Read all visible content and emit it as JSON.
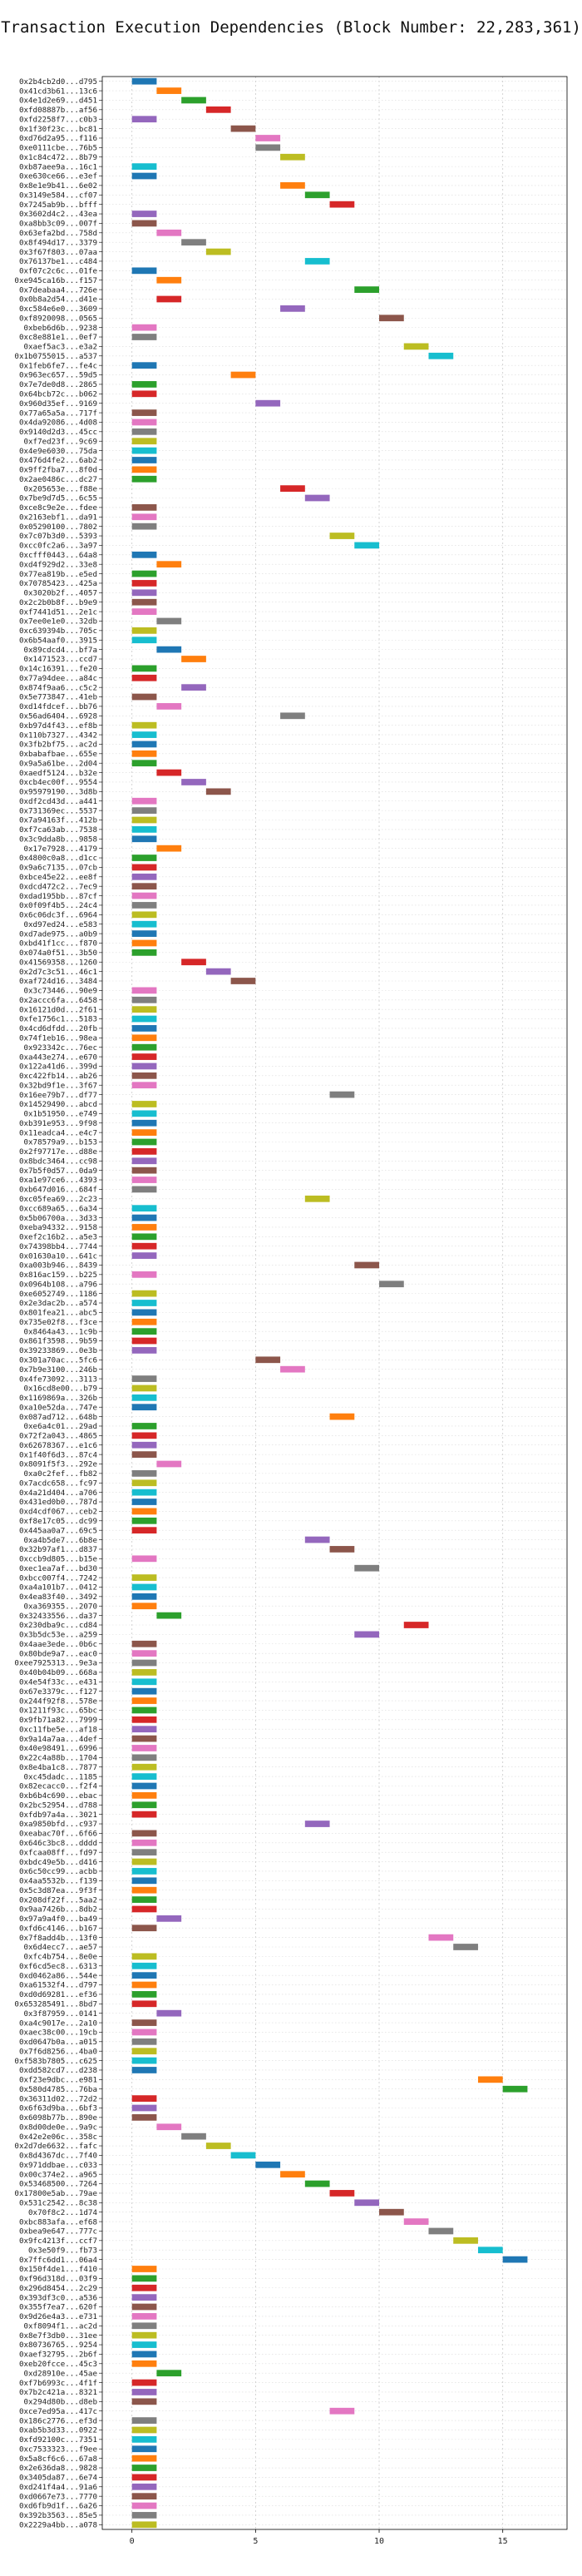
{
  "chart_data": {
    "type": "bar",
    "title": "Transaction Execution Dependencies (Block Number: 22,283,361)",
    "xlabel": "",
    "ylabel": "",
    "xlim": [
      -1.2,
      17.6
    ],
    "xticks": [
      0,
      5,
      10,
      15
    ],
    "grid": true,
    "legend": "none",
    "palette": [
      "#1f77b4",
      "#ff7f0e",
      "#2ca02c",
      "#d62728",
      "#9467bd",
      "#8c564b",
      "#e377c2",
      "#7f7f7f",
      "#bcbd22",
      "#17becf"
    ],
    "categories": [
      "0x2b4cb2d0...d795",
      "0x41cd3b61...13c6",
      "0x4e1d2e69...d451",
      "0xfd08887b...af56",
      "0xfd2258f7...c0b3",
      "0x1f30f23c...bc81",
      "0xd76d2a95...f116",
      "0xe0111cbe...76b5",
      "0x1c84c472...8b79",
      "0xb87aee9a...16c1",
      "0xe630ce66...e3ef",
      "0x8e1e9b41...6e02",
      "0x3149e584...cf07",
      "0x7245ab9b...bfff",
      "0x3602d4c2...43ea",
      "0xa8bb3c09...007f",
      "0x63efa2bd...758d",
      "0x8f494d17...3379",
      "0x3f67f803...07aa",
      "0x76137be1...c484",
      "0xf07c2c6c...01fe",
      "0xe945ca16b...f157",
      "0x7deabaa4...726e",
      "0x0b8a2d54...d41e",
      "0xc584e6e0...3609",
      "0xf8920098...0565",
      "0xbeb6d6b...9238",
      "0xc8e881e1...0ef7",
      "0xaef5ac3...e3a2",
      "0x1b0755015...a537",
      "0x1feb6fe7...fe4c",
      "0x963ec657...59d5",
      "0x7e7de0d8...2865",
      "0x64bcb72c...b062",
      "0x960d35ef...9169",
      "0x77a65a5a...717f",
      "0x4da92086...4d08",
      "0x9140d2d3...45cc",
      "0xf7ed23f...9c69",
      "0x4e9e6030...75da",
      "0x476d4fe2...6ab2",
      "0x9ff2fba7...8f0d",
      "0x2ae0486c...dc27",
      "0x205653e...f88e",
      "0x7be9d7d5...6c55",
      "0xce8c9e2e...fdee",
      "0x2163ebf1...da91",
      "0x05290100...7802",
      "0x7c07b3d0...5393",
      "0xcc0fc2a6...3a97",
      "0xcfff0443...64a8",
      "0xd4f929d2...33e8",
      "0x77ea819b...e5ed",
      "0x70785423...425a",
      "0x3020b2f...4057",
      "0x2c2b0b8f...b9e9",
      "0xf7441d51...2e1c",
      "0x7ee0e1e0...32db",
      "0xc639394b...705c",
      "0x6b54aaf0...3915",
      "0x89cdcd4...bf7a",
      "0x1471523...ccd7",
      "0x14c16391...fe20",
      "0x77a94dee...a84c",
      "0x874f9aa6...c5c2",
      "0x5e773847...41eb",
      "0xd14fdcef...bb76",
      "0x56ad6404...6928",
      "0xb97d4f43...ef8b",
      "0x110b7327...4342",
      "0x3fb2bf75...ac2d",
      "0xbabafbae...655e",
      "0x9a5a61be...2d04",
      "0xaedf5124...b32e",
      "0xcb4ec00f...9554",
      "0x95979190...3d8b",
      "0xdf2cd43d...a441",
      "0x731369ec...5537",
      "0x7a94163f...412b",
      "0xf7ca63ab...7538",
      "0x3c9dda8b...9858",
      "0x17e7928...4179",
      "0x4800c0a8...d1cc",
      "0x9a6c7135...07cb",
      "0xbce45e22...ee8f",
      "0xdcd472c2...7ec9",
      "0xdad195bb...87cf",
      "0x0f09f4b5...24c4",
      "0x6c06dc3f...6964",
      "0xd97ed24...e583",
      "0xd7ade975...a0b9",
      "0xbd41f1cc...f870",
      "0x074a0f51...3b50",
      "0x41569358...1260",
      "0x2d7c3c51...46c1",
      "0xaf724d16...3484",
      "0x3c73446...90e9",
      "0x2accc6fa...6458",
      "0x16121d0d...2f61",
      "0xfe1756c1...5183",
      "0x4cd6dfdd...20fb",
      "0x74f1eb16...98ea",
      "0x923342c...76ec",
      "0xa443e274...e670",
      "0x122a41d6...399d",
      "0xc422fb14...ab26",
      "0x32bd9f1e...3f67",
      "0x16ee79b7...df77",
      "0x14529490...abcd",
      "0x1b51950...e749",
      "0xb391e953...9f98",
      "0x11eadca4...e4c7",
      "0x78579a9...b153",
      "0x2f97717e...d88e",
      "0x8bdc3464...cc98",
      "0x7b5f0d57...0da9",
      "0xa1e97ce6...4393",
      "0xb647d016...684f",
      "0xc05fea69...2c23",
      "0xcc689a65...6a34",
      "0x5b06700a...3d33",
      "0xeba94332...9158",
      "0xef2c16b2...a5e3",
      "0x74398bb4...7744",
      "0x01630a10...641c",
      "0xa003b946...8439",
      "0x816ac159...b225",
      "0x0964b108...a796",
      "0xe6052749...1186",
      "0x2e3dac2b...a574",
      "0x801fea21...abc5",
      "0x735e02f8...f3ce",
      "0x8464a43...1c9b",
      "0x861f3598...9b59",
      "0x39233869...0e3b",
      "0x301a70ac...5fc6",
      "0x7b9e3100...246b",
      "0x4fe73092...3113",
      "0x16cd8e00...b79",
      "0x1169869a...326b",
      "0xa10e52da...747e",
      "0x087ad712...648b",
      "0xe6a4c01...29ad",
      "0x72f2a043...4865",
      "0x62678367...e1c6",
      "0x1f40f6d3...87c4",
      "0x8091f5f3...292e",
      "0xa0c2fef...fb82",
      "0x7acdc658...fc97",
      "0x4a21d404...a706",
      "0x431ed0b0...787d",
      "0xd4cdf067...ceb2",
      "0xf8e17c05...dc99",
      "0x445aa0a7...69c5",
      "0xa4b5de7...6b8e",
      "0x32b97af1...d837",
      "0xccb9d805...b15e",
      "0xec1ea7af...bd30",
      "0xbcc007f4...7242",
      "0xa4a101b7...0412",
      "0x4ea83f40...3492",
      "0xa369355...2070",
      "0x32433556...da37",
      "0x230dba9c...cd84",
      "0x3b5dc53e...a259",
      "0x4aae3ede...0b6c",
      "0x80bde9a7...eac0",
      "0xee7925313...9e3a",
      "0x40b04b09...668a",
      "0x4e54f33c...e431",
      "0x67e3379c...f127",
      "0x244f92f8...578e",
      "0x1211f93c...65bc",
      "0x9fb71a82...7999",
      "0xc11fbe5e...af18",
      "0x9a14a7aa...4def",
      "0x40e98491...6996",
      "0x22c4a88b...1704",
      "0x8e4ba1c8...7877",
      "0xc45dadc...1185",
      "0x82ecacc0...f2f4",
      "0xb6b4c690...ebac",
      "0x2bc52954...d788",
      "0xfdb97a4a...3021",
      "0xa9850bfd...c937",
      "0xeabac70f...6f66",
      "0x646c3bc8...dddd",
      "0xfcaa08ff...fd97",
      "0xbdc49e5b...d416",
      "0x6c50cc99...acbb",
      "0x4aa5532b...f139",
      "0x5c3d87ea...9f3f",
      "0x208df22f...5aa2",
      "0x9aa7426b...8db2",
      "0x97a9a4f0...ba49",
      "0xfd6c4146...b167",
      "0x7f8add4b...13f0",
      "0x6d4ecc7...ae57",
      "0xfc4b754...8e0e",
      "0xf6cd5ec8...6313",
      "0xd0462a86...544e",
      "0xa61532f4...d797",
      "0xd0d69281...ef36",
      "0x653285491...8bd7",
      "0x3f87959...0141",
      "0xa4c9017e...2a10",
      "0xaec38c00...19cb",
      "0xd0647b0a...a015",
      "0x7f6d8256...4ba0",
      "0xf583b7805...c625",
      "0xdd582cd7...d238",
      "0xf23e9dbc...e981",
      "0x580d4785...76ba",
      "0x36311d02...72d2",
      "0x6f63d9ba...6bf3",
      "0x6098b77b...890e",
      "0x8d00de0e...9a9c",
      "0x42e2e06c...358c",
      "0x2d7de6632...fafc",
      "0x8d4367dc...7f40",
      "0x971ddbae...c033",
      "0x00c374e2...a965",
      "0x53468500...7264",
      "0x17800e5ab...79ae",
      "0x531c2542...8c38",
      "0x70f8c2...1d74",
      "0xbc883afa...ef68",
      "0xbea9e647...777c",
      "0x9fc4213f...ccf7",
      "0x3e50f9...fb73",
      "0x7ffc6dd1...06a4",
      "0x150f4de1...f410",
      "0xf96d318d...03f9",
      "0x296d8454...2c29",
      "0x393df3c0...a536",
      "0x355f7ea7...620f",
      "0x9d26e4a3...e731",
      "0xf8094f1...ac2d",
      "0x8e7f3db0...31ee",
      "0x80736765...9254",
      "0xaef32795...2b6f",
      "0xeb20fcce...45c3",
      "0xd28910e...45ae",
      "0xf7b6993c...4f1f",
      "0x7b2c421a...8321",
      "0x294d80b...d8eb",
      "0xce7ed95a...417c",
      "0x186c2776...ef3d",
      "0xab5b3d33...0922",
      "0xfd92100c...7351",
      "0xc7533323...f9ee",
      "0x5a8cf6c6...67a8",
      "0x2e636da8...9828",
      "0x3405da87...6e74",
      "0xd241f4a4...91a6",
      "0xd0667e73...7770",
      "0xd6fb9d1f...6a26",
      "0x392b3563...85e5",
      "0x2229a4bb...a078"
    ],
    "values": [
      [
        0,
        1
      ],
      [
        1,
        2
      ],
      [
        2,
        3
      ],
      [
        3,
        4
      ],
      [
        0,
        1
      ],
      [
        4,
        5
      ],
      [
        5,
        6
      ],
      [
        5,
        6
      ],
      [
        6,
        7
      ],
      [
        0,
        1
      ],
      [
        0,
        1
      ],
      [
        6,
        7
      ],
      [
        7,
        8
      ],
      [
        8,
        9
      ],
      [
        0,
        1
      ],
      [
        0,
        1
      ],
      [
        1,
        2
      ],
      [
        2,
        3
      ],
      [
        3,
        4
      ],
      [
        7,
        8
      ],
      [
        0,
        1
      ],
      [
        1,
        2
      ],
      [
        9,
        10
      ],
      [
        1,
        2
      ],
      [
        6,
        7
      ],
      [
        10,
        11
      ],
      [
        0,
        1
      ],
      [
        0,
        1
      ],
      [
        11,
        12
      ],
      [
        12,
        13
      ],
      [
        0,
        1
      ],
      [
        4,
        5
      ],
      [
        0,
        1
      ],
      [
        0,
        1
      ],
      [
        5,
        6
      ],
      [
        0,
        1
      ],
      [
        0,
        1
      ],
      [
        0,
        1
      ],
      [
        0,
        1
      ],
      [
        0,
        1
      ],
      [
        0,
        1
      ],
      [
        0,
        1
      ],
      [
        0,
        1
      ],
      [
        6,
        7
      ],
      [
        7,
        8
      ],
      [
        0,
        1
      ],
      [
        0,
        1
      ],
      [
        0,
        1
      ],
      [
        8,
        9
      ],
      [
        9,
        10
      ],
      [
        0,
        1
      ],
      [
        1,
        2
      ],
      [
        0,
        1
      ],
      [
        0,
        1
      ],
      [
        0,
        1
      ],
      [
        0,
        1
      ],
      [
        0,
        1
      ],
      [
        1,
        2
      ],
      [
        0,
        1
      ],
      [
        0,
        1
      ],
      [
        1,
        2
      ],
      [
        2,
        3
      ],
      [
        0,
        1
      ],
      [
        0,
        1
      ],
      [
        2,
        3
      ],
      [
        0,
        1
      ],
      [
        1,
        2
      ],
      [
        6,
        7
      ],
      [
        0,
        1
      ],
      [
        0,
        1
      ],
      [
        0,
        1
      ],
      [
        0,
        1
      ],
      [
        0,
        1
      ],
      [
        1,
        2
      ],
      [
        2,
        3
      ],
      [
        3,
        4
      ],
      [
        0,
        1
      ],
      [
        0,
        1
      ],
      [
        0,
        1
      ],
      [
        0,
        1
      ],
      [
        0,
        1
      ],
      [
        1,
        2
      ],
      [
        0,
        1
      ],
      [
        0,
        1
      ],
      [
        0,
        1
      ],
      [
        0,
        1
      ],
      [
        0,
        1
      ],
      [
        0,
        1
      ],
      [
        0,
        1
      ],
      [
        0,
        1
      ],
      [
        0,
        1
      ],
      [
        0,
        1
      ],
      [
        0,
        1
      ],
      [
        2,
        3
      ],
      [
        3,
        4
      ],
      [
        4,
        5
      ],
      [
        0,
        1
      ],
      [
        0,
        1
      ],
      [
        0,
        1
      ],
      [
        0,
        1
      ],
      [
        0,
        1
      ],
      [
        0,
        1
      ],
      [
        0,
        1
      ],
      [
        0,
        1
      ],
      [
        0,
        1
      ],
      [
        0,
        1
      ],
      [
        0,
        1
      ],
      [
        8,
        9
      ],
      [
        0,
        1
      ],
      [
        0,
        1
      ],
      [
        0,
        1
      ],
      [
        0,
        1
      ],
      [
        0,
        1
      ],
      [
        0,
        1
      ],
      [
        0,
        1
      ],
      [
        0,
        1
      ],
      [
        0,
        1
      ],
      [
        0,
        1
      ],
      [
        7,
        8
      ],
      [
        0,
        1
      ],
      [
        0,
        1
      ],
      [
        0,
        1
      ],
      [
        0,
        1
      ],
      [
        0,
        1
      ],
      [
        0,
        1
      ],
      [
        9,
        10
      ],
      [
        0,
        1
      ],
      [
        10,
        11
      ],
      [
        0,
        1
      ],
      [
        0,
        1
      ],
      [
        0,
        1
      ],
      [
        0,
        1
      ],
      [
        0,
        1
      ],
      [
        0,
        1
      ],
      [
        0,
        1
      ],
      [
        5,
        6
      ],
      [
        6,
        7
      ],
      [
        0,
        1
      ],
      [
        0,
        1
      ],
      [
        0,
        1
      ],
      [
        0,
        1
      ],
      [
        8,
        9
      ],
      [
        0,
        1
      ],
      [
        0,
        1
      ],
      [
        0,
        1
      ],
      [
        0,
        1
      ],
      [
        1,
        2
      ],
      [
        0,
        1
      ],
      [
        0,
        1
      ],
      [
        0,
        1
      ],
      [
        0,
        1
      ],
      [
        0,
        1
      ],
      [
        0,
        1
      ],
      [
        0,
        1
      ],
      [
        7,
        8
      ],
      [
        8,
        9
      ],
      [
        0,
        1
      ],
      [
        9,
        10
      ],
      [
        0,
        1
      ],
      [
        0,
        1
      ],
      [
        0,
        1
      ],
      [
        0,
        1
      ],
      [
        1,
        2
      ],
      [
        11,
        12
      ],
      [
        9,
        10
      ],
      [
        0,
        1
      ],
      [
        0,
        1
      ],
      [
        0,
        1
      ],
      [
        0,
        1
      ],
      [
        0,
        1
      ],
      [
        0,
        1
      ],
      [
        0,
        1
      ],
      [
        0,
        1
      ],
      [
        0,
        1
      ],
      [
        0,
        1
      ],
      [
        0,
        1
      ],
      [
        0,
        1
      ],
      [
        0,
        1
      ],
      [
        0,
        1
      ],
      [
        0,
        1
      ],
      [
        0,
        1
      ],
      [
        0,
        1
      ],
      [
        0,
        1
      ],
      [
        0,
        1
      ],
      [
        7,
        8
      ],
      [
        0,
        1
      ],
      [
        0,
        1
      ],
      [
        0,
        1
      ],
      [
        0,
        1
      ],
      [
        0,
        1
      ],
      [
        0,
        1
      ],
      [
        0,
        1
      ],
      [
        0,
        1
      ],
      [
        0,
        1
      ],
      [
        1,
        2
      ],
      [
        0,
        1
      ],
      [
        12,
        13
      ],
      [
        13,
        14
      ],
      [
        0,
        1
      ],
      [
        0,
        1
      ],
      [
        0,
        1
      ],
      [
        0,
        1
      ],
      [
        0,
        1
      ],
      [
        0,
        1
      ],
      [
        1,
        2
      ],
      [
        0,
        1
      ],
      [
        0,
        1
      ],
      [
        0,
        1
      ],
      [
        0,
        1
      ],
      [
        0,
        1
      ],
      [
        0,
        1
      ],
      [
        14,
        15
      ],
      [
        15,
        16
      ],
      [
        0,
        1
      ],
      [
        0,
        1
      ],
      [
        0,
        1
      ],
      [
        1,
        2
      ],
      [
        2,
        3
      ],
      [
        3,
        4
      ],
      [
        4,
        5
      ],
      [
        5,
        6
      ],
      [
        6,
        7
      ],
      [
        7,
        8
      ],
      [
        8,
        9
      ],
      [
        9,
        10
      ],
      [
        10,
        11
      ],
      [
        11,
        12
      ],
      [
        12,
        13
      ],
      [
        13,
        14
      ],
      [
        14,
        15
      ],
      [
        15,
        16
      ],
      [
        0,
        1
      ],
      [
        0,
        1
      ],
      [
        0,
        1
      ],
      [
        0,
        1
      ],
      [
        0,
        1
      ],
      [
        0,
        1
      ],
      [
        0,
        1
      ],
      [
        0,
        1
      ],
      [
        0,
        1
      ],
      [
        0,
        1
      ],
      [
        0,
        1
      ],
      [
        1,
        2
      ],
      [
        0,
        1
      ],
      [
        0,
        1
      ],
      [
        0,
        1
      ],
      [
        8,
        9
      ],
      [
        0,
        1
      ],
      [
        0,
        1
      ],
      [
        0,
        1
      ],
      [
        0,
        1
      ],
      [
        0,
        1
      ],
      [
        0,
        1
      ],
      [
        0,
        1
      ],
      [
        0,
        1
      ],
      [
        0,
        1
      ],
      [
        0,
        1
      ],
      [
        0,
        1
      ],
      [
        0,
        1
      ]
    ]
  }
}
